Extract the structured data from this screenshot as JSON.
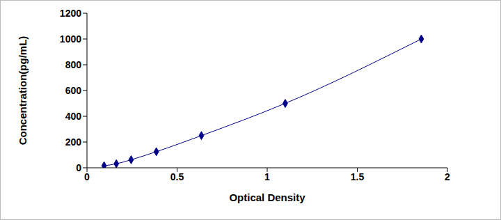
{
  "chart_data": {
    "type": "line",
    "x_label": "Optical Density",
    "y_label": "Concentration(pg/mL)",
    "x": [
      0.095,
      0.163,
      0.245,
      0.385,
      0.635,
      1.1,
      1.855
    ],
    "values": [
      15.6,
      31.2,
      62.5,
      125,
      250,
      500,
      1000
    ],
    "color": "#00008b",
    "marker": "diamond",
    "xlim": [
      0,
      2
    ],
    "xticks": [
      0,
      0.5,
      1,
      1.5,
      2
    ],
    "ylim": [
      0,
      1200
    ],
    "yticks": [
      0,
      200,
      400,
      600,
      800,
      1000,
      1200
    ],
    "grid": false
  }
}
